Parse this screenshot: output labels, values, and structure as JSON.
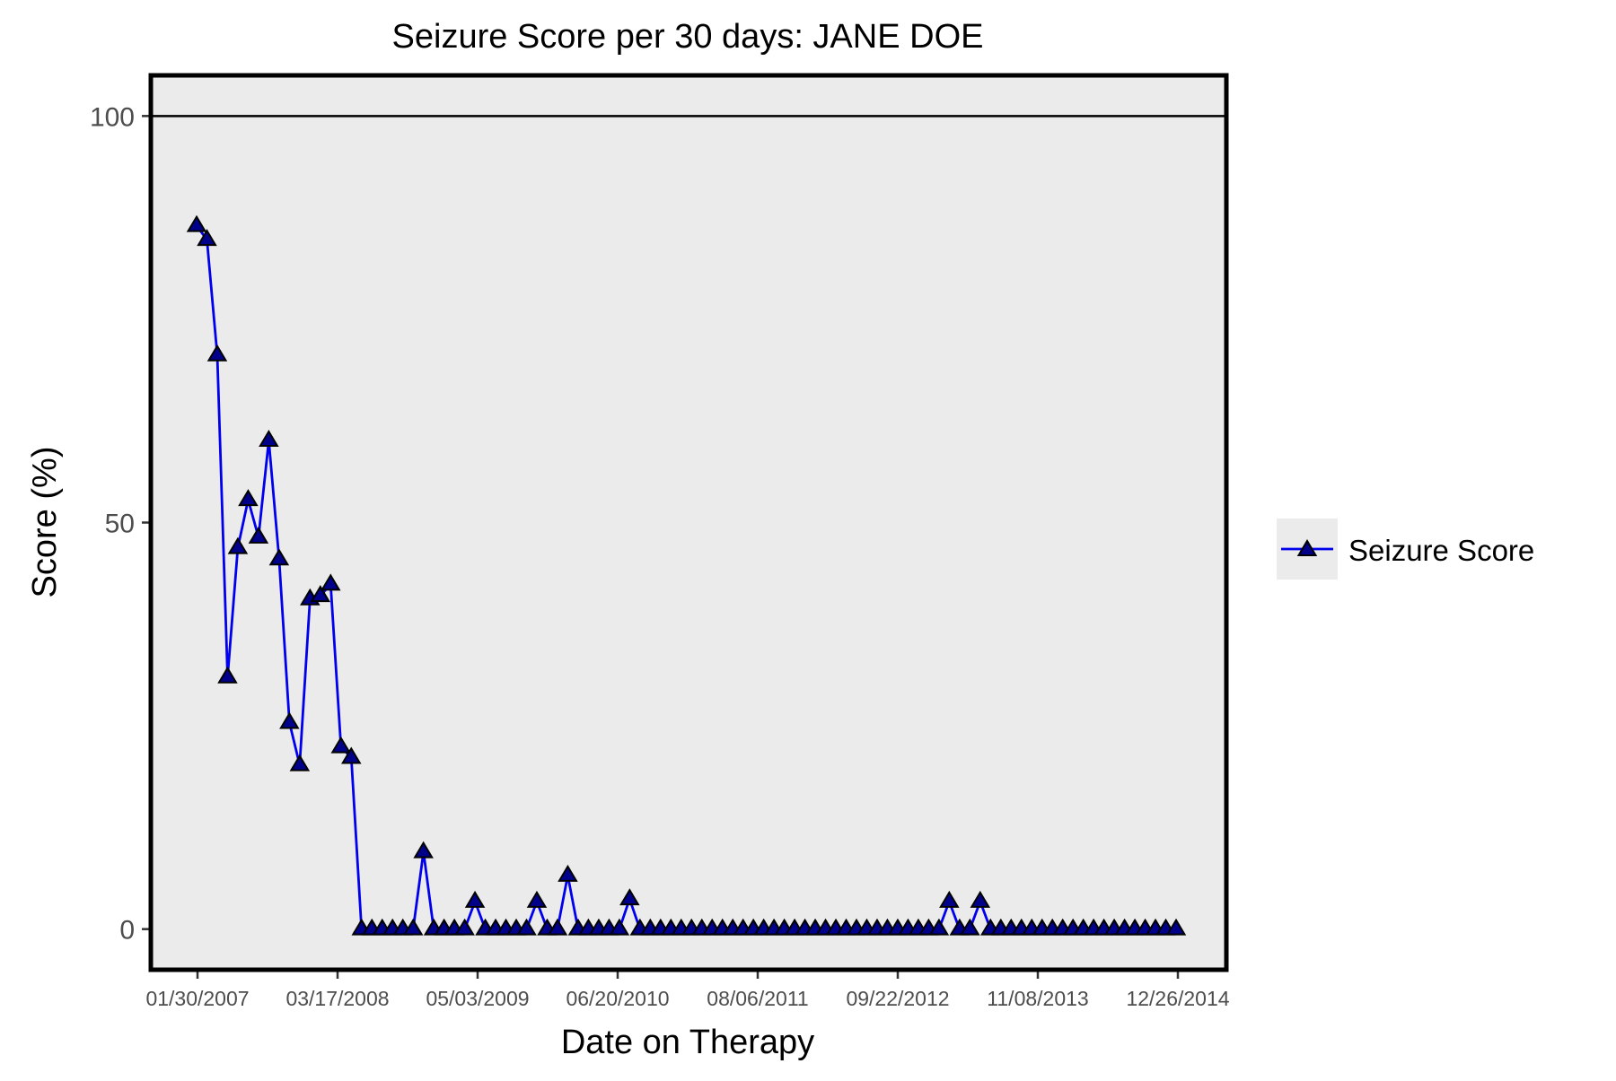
{
  "chart_data": {
    "type": "line",
    "title": "Seizure Score per 30 days: JANE DOE",
    "xlabel": "Date on Therapy",
    "ylabel": "Score (%)",
    "ylim": [
      -5,
      105
    ],
    "yticks": [
      0,
      50,
      100
    ],
    "reference_line": 100,
    "x_tick_labels": [
      "01/30/2007",
      "03/17/2008",
      "05/03/2009",
      "06/20/2010",
      "08/06/2011",
      "09/22/2012",
      "11/08/2013",
      "12/26/2014"
    ],
    "grid": false,
    "legend_position": "right",
    "colors": {
      "line": "#0000ee",
      "marker_fill": "#00008b",
      "marker_outline": "#000000",
      "panel_background": "#ebebeb",
      "reference_line": "#000000"
    },
    "series": [
      {
        "name": "Seizure Score",
        "values": [
          86.5,
          84.8,
          70.6,
          31,
          46.9,
          52.8,
          48.2,
          60.1,
          45.5,
          25.4,
          20.2,
          40.6,
          41,
          42.4,
          22.4,
          21.1,
          0,
          0,
          0,
          0,
          0,
          0,
          9.5,
          0,
          0,
          0,
          0,
          3.4,
          0,
          0,
          0,
          0,
          0,
          3.4,
          0,
          0,
          6.6,
          0,
          0,
          0,
          0,
          0,
          3.7,
          0,
          0,
          0,
          0,
          0,
          0,
          0,
          0,
          0,
          0,
          0,
          0,
          0,
          0,
          0,
          0,
          0,
          0,
          0,
          0,
          0,
          0,
          0,
          0,
          0,
          0,
          0,
          0,
          0,
          0,
          3.4,
          0,
          0,
          3.4,
          0,
          0,
          0,
          0,
          0,
          0,
          0,
          0,
          0,
          0,
          0,
          0,
          0,
          0,
          0,
          0,
          0,
          0,
          0
        ]
      }
    ]
  }
}
